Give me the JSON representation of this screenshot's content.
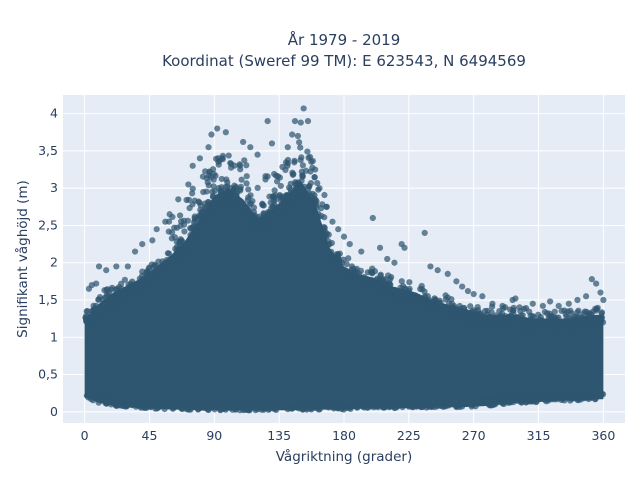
{
  "chart_data": {
    "type": "scatter",
    "title": "År 1979 - 2019",
    "subtitle": "Koordinat (Sweref 99 TM): E 623543, N 6494569",
    "xlabel": "Vågriktning (grader)",
    "ylabel": "Signifikant våghöjd (m)",
    "xlim": [
      -15,
      375
    ],
    "ylim": [
      -0.15,
      4.25
    ],
    "x_ticks": [
      0,
      45,
      90,
      135,
      180,
      225,
      270,
      315,
      360
    ],
    "x_tick_labels": [
      "0",
      "45",
      "90",
      "135",
      "180",
      "225",
      "270",
      "315",
      "360"
    ],
    "y_ticks": [
      0,
      0.5,
      1,
      1.5,
      2,
      2.5,
      3,
      3.5,
      4
    ],
    "y_tick_labels": [
      "0",
      "0,5",
      "1",
      "1,5",
      "2",
      "2,5",
      "3",
      "3,5",
      "4"
    ],
    "grid": true,
    "series": [
      {
        "marker_color": "#2f5670",
        "envelope": {
          "direction": [
            0,
            10,
            20,
            30,
            40,
            50,
            60,
            70,
            80,
            90,
            100,
            110,
            120,
            130,
            140,
            150,
            160,
            170,
            180,
            190,
            200,
            210,
            220,
            230,
            240,
            250,
            260,
            270,
            280,
            290,
            300,
            310,
            320,
            330,
            340,
            350,
            360
          ],
          "dense_max_height": [
            1.25,
            1.45,
            1.6,
            1.7,
            1.8,
            1.95,
            2.1,
            2.3,
            2.6,
            2.9,
            3.0,
            2.85,
            2.6,
            2.7,
            2.9,
            3.1,
            2.8,
            2.2,
            1.95,
            1.85,
            1.8,
            1.7,
            1.65,
            1.6,
            1.5,
            1.45,
            1.4,
            1.35,
            1.3,
            1.3,
            1.3,
            1.25,
            1.25,
            1.25,
            1.25,
            1.3,
            1.3
          ],
          "dense_min_height": [
            0.2,
            0.12,
            0.08,
            0.06,
            0.05,
            0.04,
            0.03,
            0.03,
            0.02,
            0.02,
            0.02,
            0.02,
            0.02,
            0.02,
            0.02,
            0.02,
            0.03,
            0.03,
            0.03,
            0.04,
            0.04,
            0.05,
            0.05,
            0.05,
            0.06,
            0.06,
            0.06,
            0.07,
            0.08,
            0.1,
            0.12,
            0.12,
            0.14,
            0.15,
            0.15,
            0.16,
            0.17
          ]
        },
        "outliers": [
          [
            152,
            4.07
          ],
          [
            146,
            3.9
          ],
          [
            150,
            3.88
          ],
          [
            155,
            3.9
          ],
          [
            92,
            3.8
          ],
          [
            88,
            3.72
          ],
          [
            98,
            3.75
          ],
          [
            130,
            3.6
          ],
          [
            141,
            3.55
          ],
          [
            144,
            3.72
          ],
          [
            148,
            3.7
          ],
          [
            127,
            3.9
          ],
          [
            110,
            3.62
          ],
          [
            115,
            3.55
          ],
          [
            120,
            3.45
          ],
          [
            86,
            3.55
          ],
          [
            80,
            3.4
          ],
          [
            75,
            3.3
          ],
          [
            72,
            3.05
          ],
          [
            65,
            2.85
          ],
          [
            59,
            2.65
          ],
          [
            56,
            2.55
          ],
          [
            50,
            2.45
          ],
          [
            47,
            2.3
          ],
          [
            40,
            2.25
          ],
          [
            35,
            2.15
          ],
          [
            30,
            1.95
          ],
          [
            22,
            1.95
          ],
          [
            15,
            1.9
          ],
          [
            10,
            1.95
          ],
          [
            8,
            1.72
          ],
          [
            5,
            1.7
          ],
          [
            3,
            1.65
          ],
          [
            160,
            3.25
          ],
          [
            163,
            3.0
          ],
          [
            168,
            2.75
          ],
          [
            172,
            2.55
          ],
          [
            176,
            2.45
          ],
          [
            180,
            2.35
          ],
          [
            184,
            2.25
          ],
          [
            192,
            2.15
          ],
          [
            200,
            2.6
          ],
          [
            205,
            2.2
          ],
          [
            210,
            2.05
          ],
          [
            215,
            2.0
          ],
          [
            220,
            2.25
          ],
          [
            222,
            2.2
          ],
          [
            236,
            2.4
          ],
          [
            240,
            1.95
          ],
          [
            245,
            1.9
          ],
          [
            252,
            1.85
          ],
          [
            258,
            1.75
          ],
          [
            262,
            1.68
          ],
          [
            266,
            1.62
          ],
          [
            270,
            1.58
          ],
          [
            276,
            1.55
          ],
          [
            283,
            1.45
          ],
          [
            290,
            1.42
          ],
          [
            297,
            1.5
          ],
          [
            299,
            1.52
          ],
          [
            305,
            1.38
          ],
          [
            311,
            1.45
          ],
          [
            318,
            1.42
          ],
          [
            323,
            1.48
          ],
          [
            329,
            1.42
          ],
          [
            336,
            1.45
          ],
          [
            342,
            1.5
          ],
          [
            348,
            1.55
          ],
          [
            352,
            1.78
          ],
          [
            355,
            1.72
          ],
          [
            358,
            1.6
          ],
          [
            360,
            1.5
          ]
        ]
      }
    ]
  }
}
